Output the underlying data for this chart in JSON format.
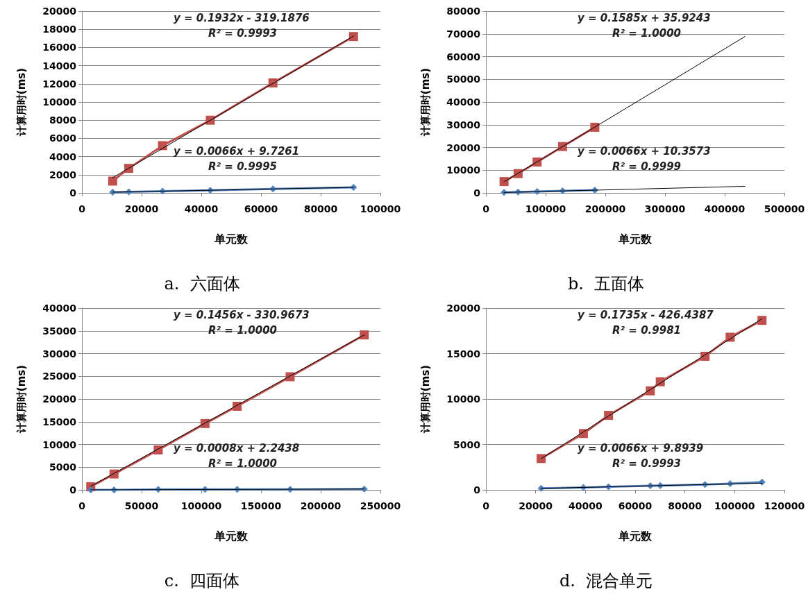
{
  "chart_data": [
    {
      "type": "line",
      "title": "a.  六面体",
      "xlabel": "单元数",
      "ylabel": "计算用时(ms)",
      "xlim": [
        0,
        100000
      ],
      "xticks": [
        0,
        20000,
        40000,
        60000,
        80000,
        100000
      ],
      "ylim": [
        0,
        20000
      ],
      "yticks": [
        0,
        2000,
        4000,
        6000,
        8000,
        10000,
        12000,
        14000,
        16000,
        18000,
        20000
      ],
      "grid": "y",
      "annotations": [
        "y = 0.1932x - 319.1876",
        "R² = 0.9993",
        "y = 0.0066x + 9.7261",
        "R² = 0.9995"
      ],
      "series": [
        {
          "color": "#c0504d",
          "marker": "square",
          "x": [
            10300,
            15700,
            27000,
            43000,
            64000,
            91000
          ],
          "values": [
            1300,
            2700,
            5200,
            8000,
            12100,
            17200
          ]
        },
        {
          "color": "#4f81bd",
          "marker": "diamond",
          "x": [
            10300,
            15700,
            27000,
            43000,
            64000,
            91000
          ],
          "values": [
            80,
            110,
            190,
            290,
            430,
            610
          ]
        },
        {
          "color": "#000000",
          "marker": "none",
          "x": [
            10300,
            91000
          ],
          "values": [
            1670,
            17260
          ]
        },
        {
          "color": "#000000",
          "marker": "none",
          "x": [
            10300,
            91000
          ],
          "values": [
            80,
            610
          ]
        }
      ]
    },
    {
      "type": "line",
      "title": "b.  五面体",
      "xlabel": "单元数",
      "ylabel": "计算用时(ms)",
      "xlim": [
        0,
        500000
      ],
      "xticks": [
        0,
        100000,
        200000,
        300000,
        400000,
        500000
      ],
      "ylim": [
        0,
        80000
      ],
      "yticks": [
        0,
        10000,
        20000,
        30000,
        40000,
        50000,
        60000,
        70000,
        80000
      ],
      "grid": "y",
      "annotations": [
        "y = 0.1585x + 35.9243",
        "R² = 1.0000",
        "y = 0.0066x + 10.3573",
        "R² = 0.9999"
      ],
      "series": [
        {
          "color": "#c0504d",
          "marker": "square",
          "x": [
            30400,
            53900,
            85800,
            128400,
            182400
          ],
          "values": [
            5000,
            8500,
            13600,
            20400,
            28900
          ]
        },
        {
          "color": "#4f81bd",
          "marker": "diamond",
          "x": [
            30400,
            53900,
            85800,
            128400,
            182400
          ],
          "values": [
            200,
            400,
            600,
            900,
            1200
          ]
        },
        {
          "color": "#000000",
          "marker": "none",
          "x": [
            30400,
            434000
          ],
          "values": [
            4900,
            68800
          ]
        },
        {
          "color": "#000000",
          "marker": "none",
          "x": [
            30400,
            434000
          ],
          "values": [
            200,
            2900
          ]
        }
      ]
    },
    {
      "type": "line",
      "title": "c.  四面体",
      "xlabel": "单元数",
      "ylabel": "计算用时(ms)",
      "xlim": [
        0,
        250000
      ],
      "xticks": [
        0,
        50000,
        100000,
        150000,
        200000,
        250000
      ],
      "ylim": [
        0,
        40000
      ],
      "yticks": [
        0,
        5000,
        10000,
        15000,
        20000,
        25000,
        30000,
        35000,
        40000
      ],
      "grid": "y",
      "annotations": [
        "y = 0.1456x - 330.9673",
        "R² = 1.0000",
        "y = 0.0008x + 2.2438",
        "R² = 1.0000"
      ],
      "series": [
        {
          "color": "#c0504d",
          "marker": "square",
          "x": [
            7400,
            26900,
            63900,
            103100,
            130000,
            174400,
            236500
          ],
          "values": [
            700,
            3500,
            8800,
            14600,
            18400,
            24900,
            34100
          ]
        },
        {
          "color": "#4f81bd",
          "marker": "diamond",
          "x": [
            7400,
            26900,
            63900,
            103100,
            130000,
            174400,
            236500
          ],
          "values": [
            0,
            0,
            100,
            100,
            100,
            100,
            200
          ]
        },
        {
          "color": "#000000",
          "marker": "none",
          "x": [
            7400,
            236500
          ],
          "values": [
            800,
            34100
          ]
        },
        {
          "color": "#000000",
          "marker": "none",
          "x": [
            7400,
            236500
          ],
          "values": [
            0,
            200
          ]
        }
      ]
    },
    {
      "type": "line",
      "title": "d.  混合单元",
      "xlabel": "单元数",
      "ylabel": "计算用时(ms)",
      "xlim": [
        0,
        120000
      ],
      "xticks": [
        0,
        20000,
        40000,
        60000,
        80000,
        100000,
        120000
      ],
      "ylim": [
        0,
        20000
      ],
      "yticks": [
        0,
        5000,
        10000,
        15000,
        20000
      ],
      "grid": "y",
      "annotations": [
        "y = 0.1735x - 426.4387",
        "R² = 0.9981",
        "y = 0.0066x + 9.8939",
        "R² = 0.9993"
      ],
      "series": [
        {
          "color": "#c0504d",
          "marker": "square",
          "x": [
            22200,
            39200,
            49300,
            66100,
            70100,
            88100,
            98200,
            111000
          ],
          "values": [
            3450,
            6200,
            8200,
            10900,
            11900,
            14700,
            16800,
            18650
          ]
        },
        {
          "color": "#4f81bd",
          "marker": "diamond",
          "x": [
            22200,
            39200,
            49300,
            66100,
            70100,
            88100,
            98200,
            111000
          ],
          "values": [
            170,
            270,
            340,
            450,
            480,
            600,
            680,
            860
          ]
        },
        {
          "color": "#000000",
          "marker": "none",
          "x": [
            22200,
            111000
          ],
          "values": [
            3430,
            18830
          ]
        },
        {
          "color": "#000000",
          "marker": "none",
          "x": [
            22200,
            111000
          ],
          "values": [
            160,
            740
          ]
        }
      ]
    }
  ]
}
